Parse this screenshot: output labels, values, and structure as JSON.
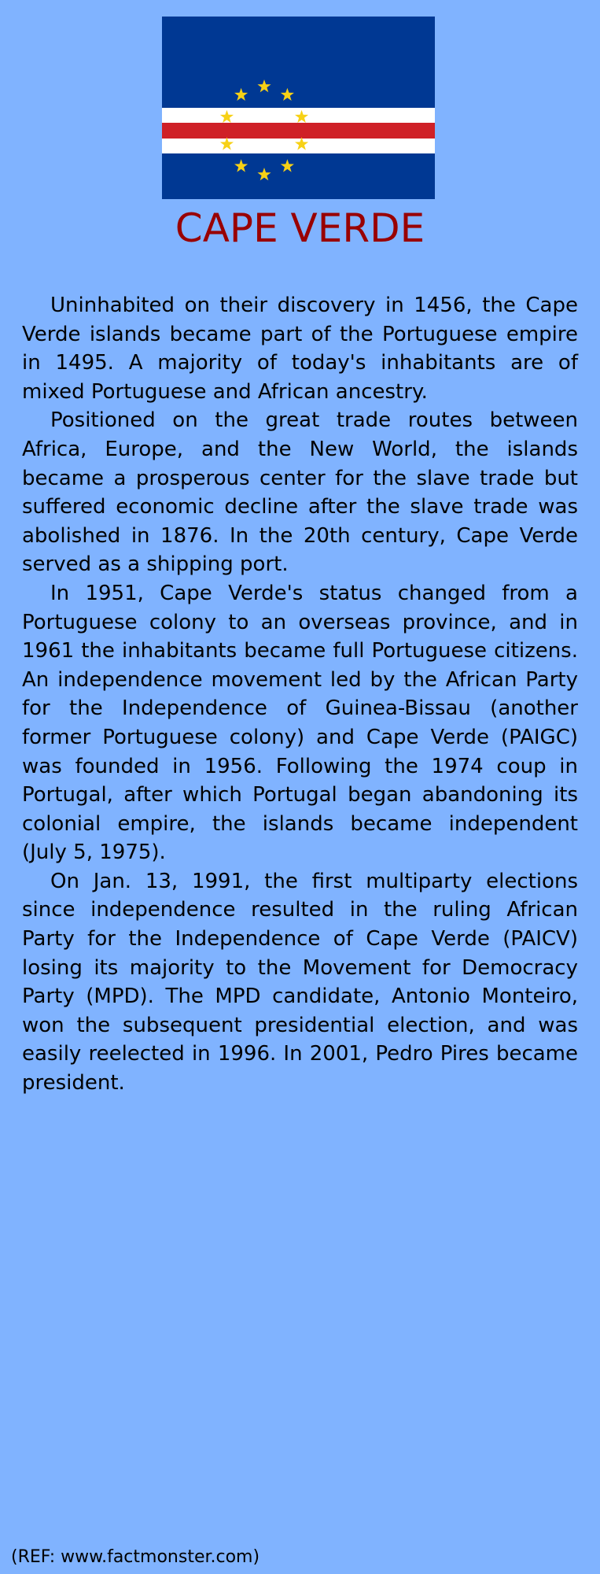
{
  "flag": {
    "icon": "cape-verde-flag-icon",
    "colors": {
      "blue": "#003893",
      "white": "#ffffff",
      "red": "#cf2027",
      "star": "#f7d116"
    }
  },
  "title": "CAPE VERDE",
  "paragraphs": [
    "Uninhabited on their discovery in 1456, the Cape Verde islands became part of the Portuguese empire in 1495. A majority of today's inhabitants are of mixed Portuguese and African ancestry.",
    "Positioned on the great trade routes between Africa, Europe, and the New World, the islands became a prosperous center for the slave trade but suffered economic decline after the slave trade was abolished in 1876. In the 20th century, Cape Verde served as a shipping port.",
    "In 1951, Cape Verde's status changed from a Portuguese colony to an overseas province, and in 1961 the inhabitants became full Portuguese citizens. An independence movement led by the African Party for the Independence of Guinea-Bissau (another former Portuguese colony) and Cape Verde (PAIGC) was founded in 1956. Following the 1974 coup in Portugal, after which Portugal began abandoning its colonial empire, the islands became independent (July 5, 1975).",
    "On Jan. 13, 1991, the first multiparty elections since independence resulted in the ruling African Party for the Independence of Cape Verde (PAICV) losing its majority to the Movement for Democracy Party (MPD). The MPD candidate, Antonio Monteiro, won the subsequent presidential election, and was easily reelected in 1996. In 2001, Pedro Pires became president."
  ],
  "reference": "(REF: www.factmonster.com)",
  "colors": {
    "background": "#80b3ff",
    "title": "#990000"
  }
}
